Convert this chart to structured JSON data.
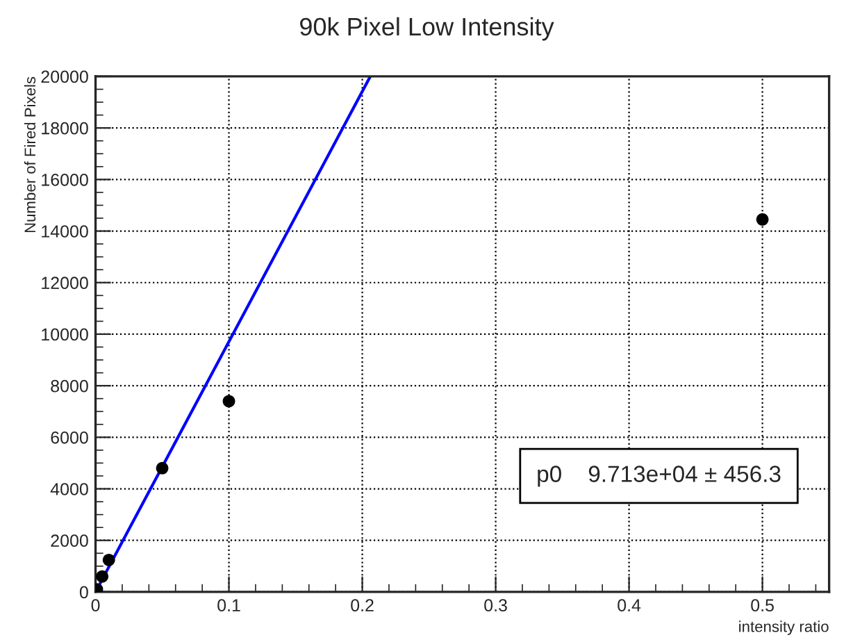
{
  "chart_data": {
    "type": "scatter",
    "title": "90k Pixel Low Intensity",
    "xlabel": "intensity ratio",
    "ylabel": "Number of Fired Pixels",
    "series": [
      {
        "color": "#000000",
        "marker": "circle",
        "x": [
          0.001,
          0.005,
          0.01,
          0.05,
          0.1,
          0.5
        ],
        "values": [
          100,
          600,
          1240,
          4800,
          7400,
          14450
        ]
      },
      {
        "type": "line",
        "color": "#0000ff",
        "x": [
          0,
          0.206
        ],
        "values": [
          0,
          20000
        ]
      }
    ],
    "xlim": [
      0,
      0.55
    ],
    "xticks": [
      0,
      0.1,
      0.2,
      0.3,
      0.4,
      0.5
    ],
    "ylim": [
      0,
      20000
    ],
    "yticks": [
      0,
      2000,
      4000,
      6000,
      8000,
      10000,
      12000,
      14000,
      16000,
      18000,
      20000
    ],
    "grid": true,
    "annotations": [
      "p0    9.713e+04 ± 456.3"
    ]
  }
}
